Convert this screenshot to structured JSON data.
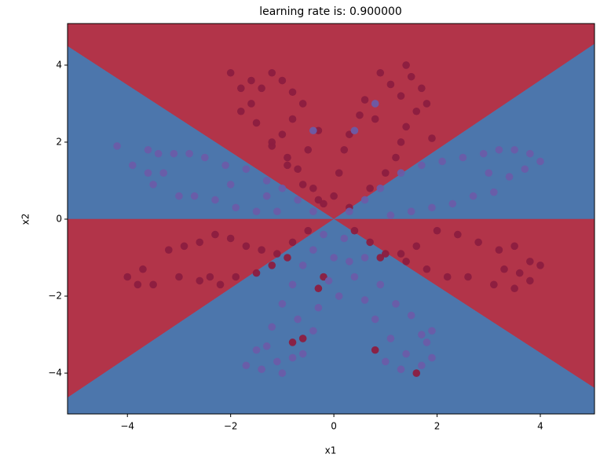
{
  "chart_data": {
    "type": "scatter",
    "title": "learning rate is: 0.900000",
    "x_label": "x1",
    "y_label": "x2",
    "xlim": [
      -5.16,
      5.05
    ],
    "ylim": [
      -5.06,
      5.08
    ],
    "xticks": [
      {
        "value": -4,
        "label": "−4"
      },
      {
        "value": -2,
        "label": "−2"
      },
      0,
      2,
      {
        "value": 4,
        "label": "4"
      }
    ],
    "yticks": [
      {
        "value": -4,
        "label": "−4"
      },
      {
        "value": -2,
        "label": "−2"
      },
      0,
      2,
      4
    ],
    "regions": [
      {
        "color": "#b23449",
        "points": [
          [
            -5.16,
            5.08
          ],
          [
            5.05,
            5.08
          ],
          [
            5.05,
            4.55
          ],
          [
            0,
            0
          ],
          [
            -5.16,
            4.49
          ]
        ]
      },
      {
        "color": "#4c76ac",
        "points": [
          [
            -5.16,
            4.49
          ],
          [
            0,
            0
          ],
          [
            -5.16,
            0
          ]
        ]
      },
      {
        "color": "#4c76ac",
        "points": [
          [
            0,
            0
          ],
          [
            5.05,
            4.55
          ],
          [
            5.05,
            0
          ]
        ]
      },
      {
        "color": "#b23449",
        "points": [
          [
            -5.16,
            0
          ],
          [
            0,
            0
          ],
          [
            -5.16,
            -4.64
          ]
        ]
      },
      {
        "color": "#b23449",
        "points": [
          [
            0,
            0
          ],
          [
            5.05,
            0
          ],
          [
            5.05,
            -4.39
          ]
        ]
      },
      {
        "color": "#4c76ac",
        "points": [
          [
            -5.16,
            -4.64
          ],
          [
            0,
            0
          ],
          [
            5.05,
            -4.39
          ],
          [
            5.05,
            -5.06
          ],
          [
            -5.16,
            -5.06
          ]
        ]
      }
    ],
    "series": [
      {
        "color": "#8c1d40",
        "x": [
          -2.0,
          -1.8,
          -1.6,
          -1.4,
          -1.2,
          -1.0,
          -0.8,
          -0.6,
          -0.8,
          -1.0,
          -1.2,
          -0.9,
          -0.7,
          -0.4,
          -0.2,
          -1.6,
          -1.8,
          -1.5,
          -1.2,
          -0.9,
          -0.6,
          -0.3,
          -0.5,
          -0.3,
          0.9,
          1.1,
          1.4,
          1.5,
          1.7,
          1.8,
          1.6,
          1.4,
          1.3,
          1.2,
          1.0,
          0.7,
          0.3,
          0.6,
          0.5,
          0.3,
          0.2,
          0.1,
          0.0,
          0.8,
          1.3,
          1.9,
          -4.0,
          -3.7,
          -3.5,
          -3.2,
          -2.9,
          -2.6,
          -2.3,
          -2.0,
          -1.7,
          -1.4,
          -1.1,
          -0.8,
          -0.5,
          -3.0,
          -2.6,
          -2.2,
          -1.9,
          -1.5,
          -1.2,
          -0.9,
          -3.8,
          -2.4,
          0.4,
          0.7,
          1.0,
          1.3,
          1.6,
          2.0,
          2.4,
          2.8,
          3.2,
          3.5,
          3.8,
          4.0,
          3.8,
          3.5,
          3.1,
          2.6,
          2.2,
          1.8,
          1.4,
          0.9,
          3.6,
          3.3,
          -0.8,
          -0.6,
          0.8,
          1.6,
          -0.3,
          -0.2
        ],
        "y": [
          3.8,
          3.4,
          3.6,
          3.4,
          3.8,
          3.6,
          3.3,
          3.0,
          2.6,
          2.2,
          1.9,
          1.6,
          1.3,
          0.8,
          0.4,
          3.0,
          2.8,
          2.5,
          2.0,
          1.4,
          0.9,
          0.5,
          1.8,
          2.3,
          3.8,
          3.5,
          4.0,
          3.7,
          3.4,
          3.0,
          2.8,
          2.4,
          2.0,
          1.6,
          1.2,
          0.8,
          0.3,
          3.1,
          2.7,
          2.2,
          1.8,
          1.2,
          0.6,
          2.6,
          3.2,
          2.1,
          -1.5,
          -1.3,
          -1.7,
          -0.8,
          -0.7,
          -0.6,
          -0.4,
          -0.5,
          -0.7,
          -0.8,
          -0.9,
          -0.6,
          -0.3,
          -1.5,
          -1.6,
          -1.7,
          -1.5,
          -1.4,
          -1.2,
          -1.0,
          -1.7,
          -1.5,
          -0.3,
          -0.6,
          -0.9,
          -0.9,
          -0.7,
          -0.3,
          -0.4,
          -0.6,
          -0.8,
          -0.7,
          -1.1,
          -1.2,
          -1.6,
          -1.8,
          -1.7,
          -1.5,
          -1.5,
          -1.3,
          -1.1,
          -1.0,
          -1.4,
          -1.3,
          -3.2,
          -3.1,
          -3.4,
          -4.0,
          -1.8,
          -1.5
        ]
      },
      {
        "color": "#6a5ca8",
        "x": [
          -4.2,
          -3.6,
          -3.4,
          -3.1,
          -2.8,
          -2.5,
          -2.1,
          -1.7,
          -1.3,
          -1.0,
          -0.7,
          -0.4,
          -3.9,
          -3.6,
          -3.3,
          -3.0,
          -2.7,
          -2.3,
          -1.9,
          -1.5,
          -1.1,
          -3.5,
          -2.0,
          -1.3,
          0.3,
          0.6,
          0.9,
          1.3,
          1.7,
          2.1,
          2.5,
          2.9,
          3.2,
          3.5,
          3.8,
          4.0,
          3.7,
          3.4,
          3.1,
          2.7,
          2.3,
          1.9,
          1.5,
          1.1,
          3.0,
          0.4,
          -0.4,
          0.8,
          -0.2,
          -0.4,
          -0.6,
          -0.8,
          -1.0,
          -1.2,
          -1.5,
          -1.7,
          -1.4,
          -1.1,
          -0.8,
          -0.6,
          -0.4,
          -0.3,
          -0.1,
          -0.7,
          -1.3,
          -1.0,
          0.2,
          0.3,
          0.4,
          0.6,
          0.8,
          1.1,
          1.4,
          1.7,
          1.9,
          1.8,
          1.7,
          1.5,
          1.2,
          0.9,
          0.6,
          1.0,
          1.3,
          1.9,
          0.1,
          0.0
        ],
        "y": [
          1.9,
          1.8,
          1.7,
          1.7,
          1.7,
          1.6,
          1.4,
          1.3,
          1.0,
          0.8,
          0.5,
          0.2,
          1.4,
          1.2,
          1.2,
          0.6,
          0.6,
          0.5,
          0.3,
          0.2,
          0.2,
          0.9,
          0.9,
          0.6,
          0.2,
          0.5,
          0.8,
          1.2,
          1.4,
          1.5,
          1.6,
          1.7,
          1.8,
          1.8,
          1.7,
          1.5,
          1.3,
          1.1,
          0.7,
          0.6,
          0.4,
          0.3,
          0.2,
          0.1,
          1.2,
          2.3,
          2.3,
          3.0,
          -0.4,
          -0.8,
          -1.2,
          -1.7,
          -2.2,
          -2.8,
          -3.4,
          -3.8,
          -3.9,
          -3.7,
          -3.6,
          -3.5,
          -2.9,
          -2.3,
          -1.6,
          -2.6,
          -3.3,
          -4.0,
          -0.5,
          -1.1,
          -1.5,
          -2.1,
          -2.6,
          -3.1,
          -3.5,
          -3.8,
          -3.6,
          -3.2,
          -3.0,
          -2.5,
          -2.2,
          -1.7,
          -1.0,
          -3.7,
          -3.9,
          -2.9,
          -2.0,
          -1.0
        ]
      }
    ]
  }
}
